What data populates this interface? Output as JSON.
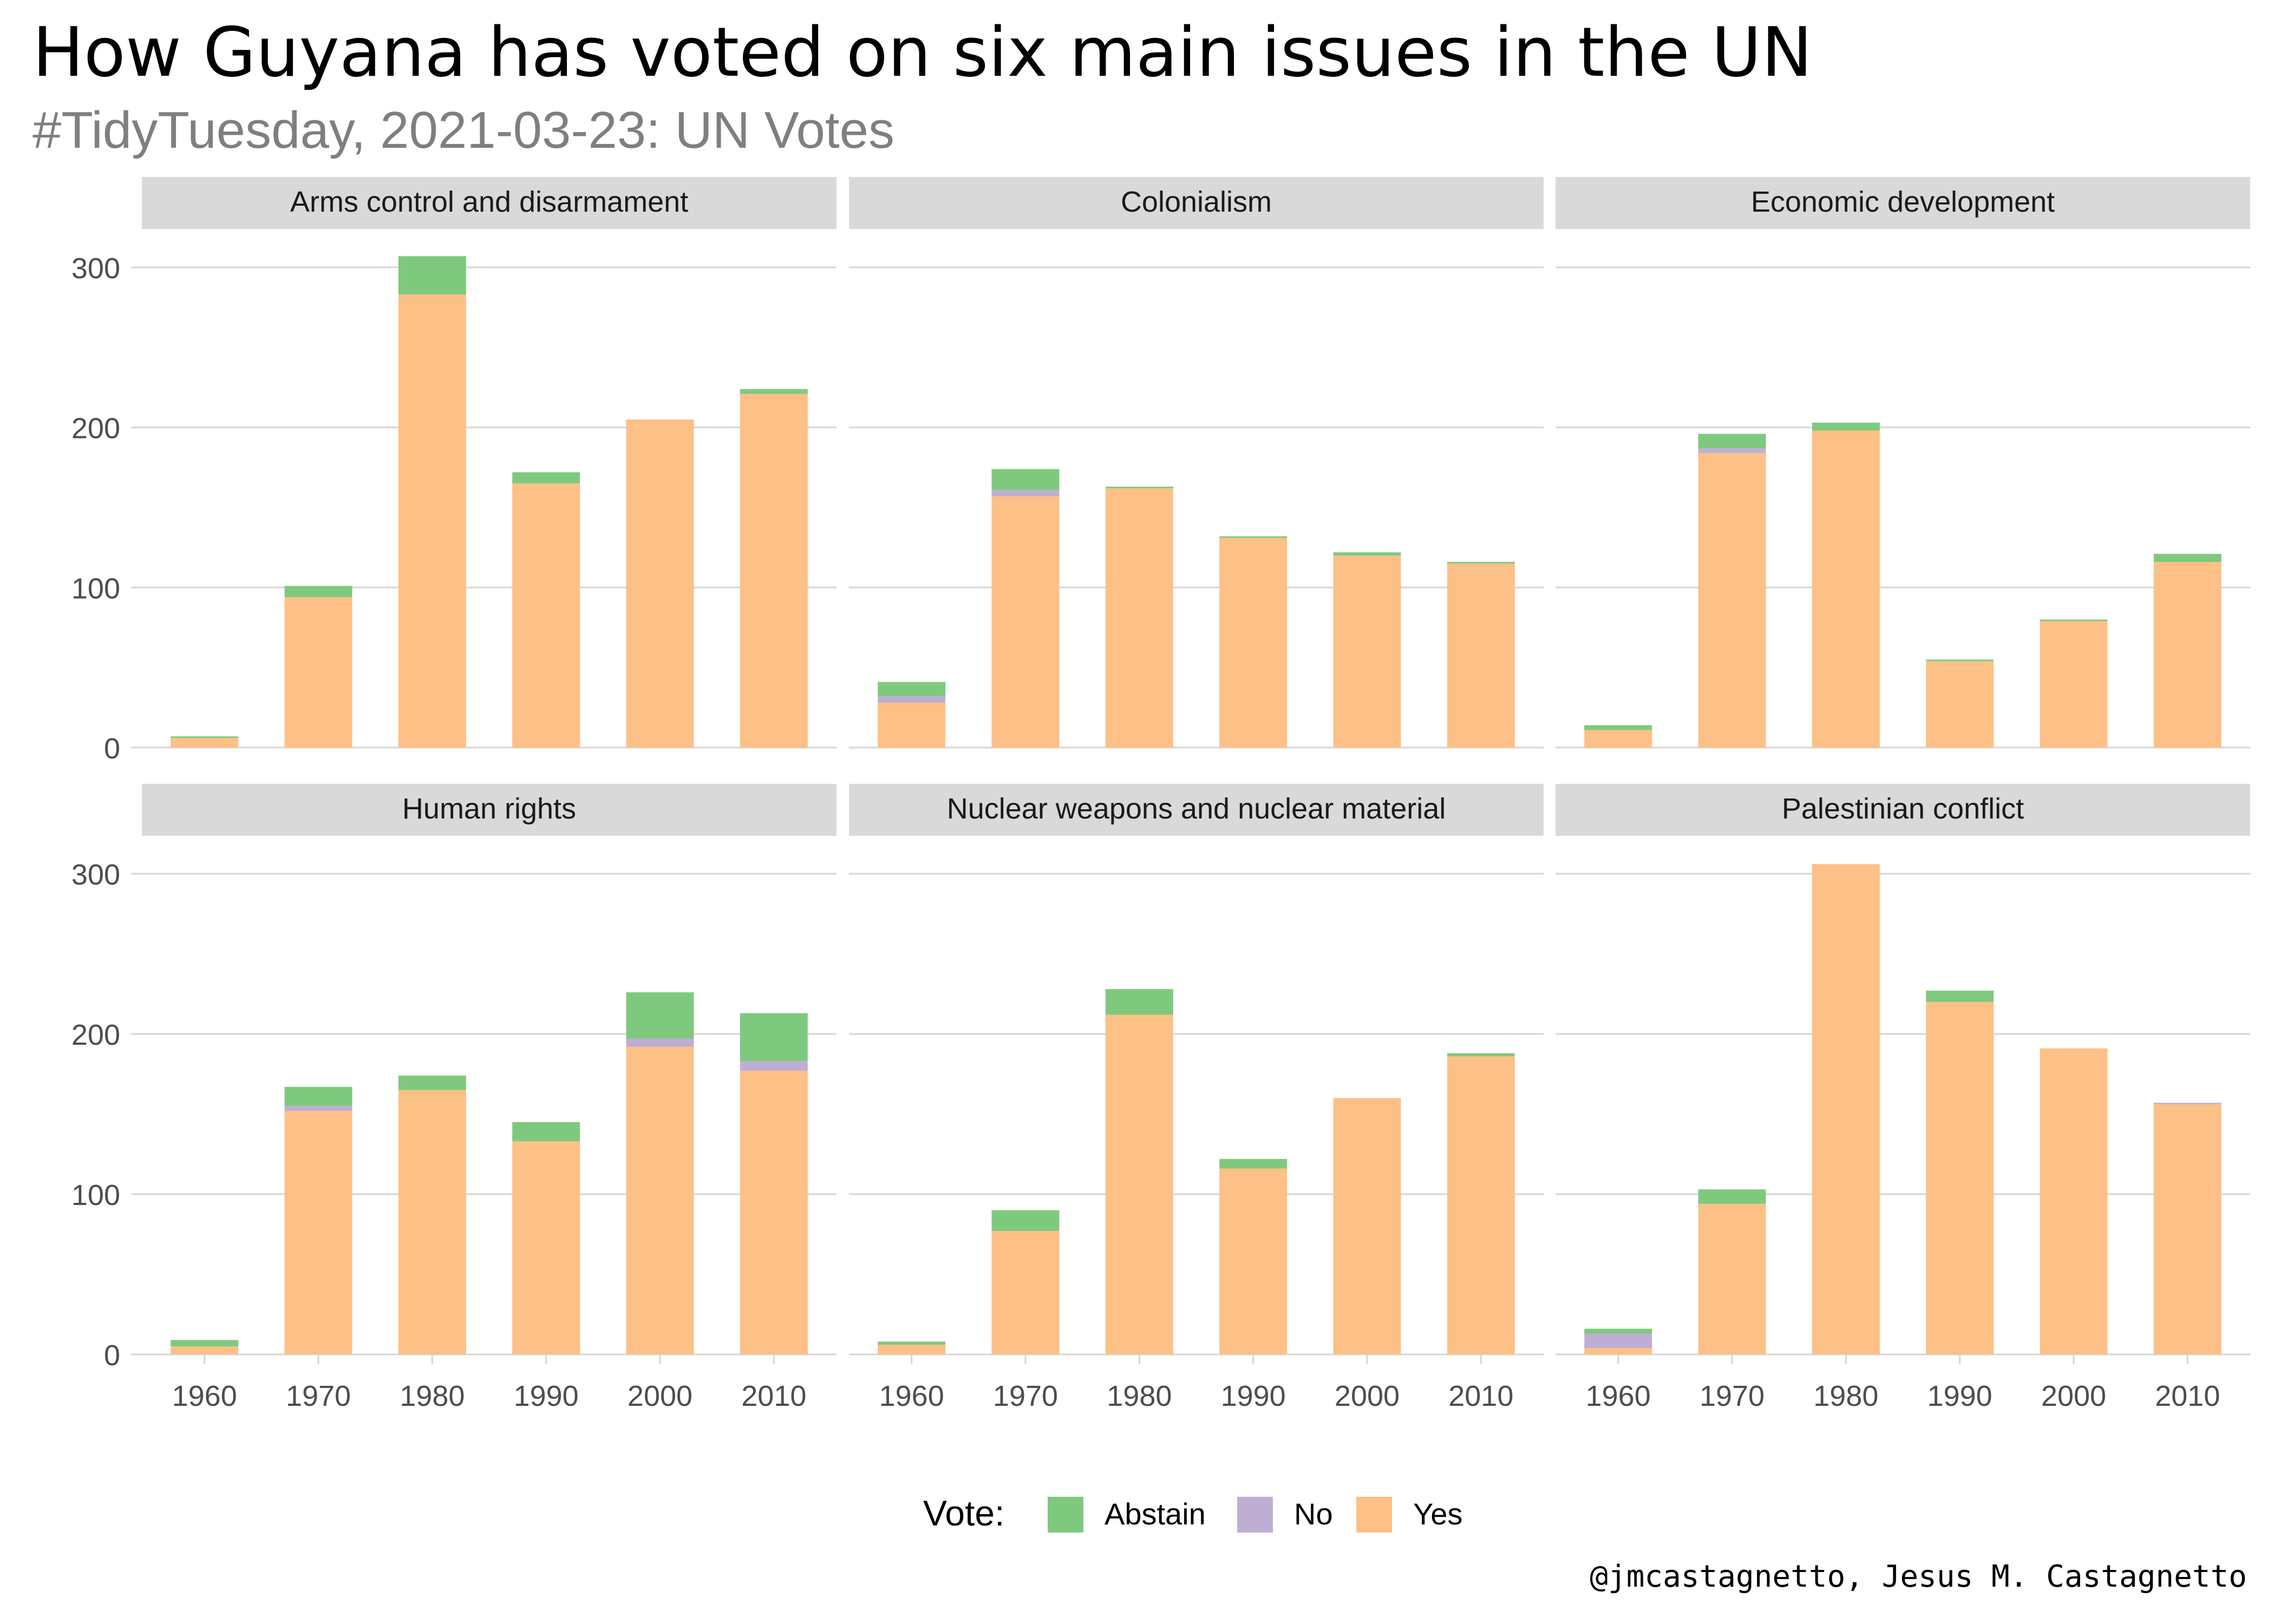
{
  "title": "How Guyana has voted on six main issues in the UN",
  "subtitle": "#TidyTuesday, 2021-03-23: UN Votes",
  "caption": "@jmcastagnetto, Jesus M. Castagnetto",
  "legend": {
    "title": "Vote:",
    "items": [
      {
        "label": "Abstain",
        "color": "#7fc97f"
      },
      {
        "label": "No",
        "color": "#beaed4"
      },
      {
        "label": "Yes",
        "color": "#fdc086"
      }
    ]
  },
  "chart_data": {
    "type": "bar",
    "stacked": true,
    "categories": [
      "1960",
      "1970",
      "1980",
      "1990",
      "2000",
      "2010"
    ],
    "ylim": [
      0,
      325
    ],
    "yticks": [
      0,
      100,
      200,
      300
    ],
    "grid": true,
    "legend_position": "bottom",
    "series_order": [
      "Yes",
      "No",
      "Abstain"
    ],
    "colors": {
      "Abstain": "#7fc97f",
      "No": "#beaed4",
      "Yes": "#fdc086"
    },
    "facets": [
      {
        "name": "Arms control and disarmament",
        "series": [
          {
            "name": "Yes",
            "values": [
              6,
              94,
              283,
              165,
              205,
              221
            ]
          },
          {
            "name": "No",
            "values": [
              0,
              0,
              0,
              0,
              0,
              0
            ]
          },
          {
            "name": "Abstain",
            "values": [
              1,
              7,
              24,
              7,
              0,
              3
            ]
          }
        ]
      },
      {
        "name": "Colonialism",
        "series": [
          {
            "name": "Yes",
            "values": [
              28,
              157,
              162,
              131,
              120,
              115
            ]
          },
          {
            "name": "No",
            "values": [
              4,
              4,
              0,
              0,
              0,
              0
            ]
          },
          {
            "name": "Abstain",
            "values": [
              9,
              13,
              1,
              1,
              2,
              1
            ]
          }
        ]
      },
      {
        "name": "Economic development",
        "series": [
          {
            "name": "Yes",
            "values": [
              11,
              184,
              198,
              54,
              79,
              116
            ]
          },
          {
            "name": "No",
            "values": [
              0,
              3,
              0,
              0,
              0,
              0
            ]
          },
          {
            "name": "Abstain",
            "values": [
              3,
              9,
              5,
              1,
              1,
              5
            ]
          }
        ]
      },
      {
        "name": "Human rights",
        "series": [
          {
            "name": "Yes",
            "values": [
              5,
              152,
              165,
              133,
              192,
              177
            ]
          },
          {
            "name": "No",
            "values": [
              0,
              3,
              0,
              0,
              5,
              6
            ]
          },
          {
            "name": "Abstain",
            "values": [
              4,
              12,
              9,
              12,
              29,
              30
            ]
          }
        ]
      },
      {
        "name": "Nuclear weapons and nuclear material",
        "series": [
          {
            "name": "Yes",
            "values": [
              6,
              77,
              212,
              116,
              160,
              186
            ]
          },
          {
            "name": "No",
            "values": [
              0,
              0,
              0,
              0,
              0,
              0
            ]
          },
          {
            "name": "Abstain",
            "values": [
              2,
              13,
              16,
              6,
              0,
              2
            ]
          }
        ]
      },
      {
        "name": "Palestinian conflict",
        "series": [
          {
            "name": "Yes",
            "values": [
              4,
              94,
              306,
              220,
              191,
              156
            ]
          },
          {
            "name": "No",
            "values": [
              9,
              0,
              0,
              0,
              0,
              1
            ]
          },
          {
            "name": "Abstain",
            "values": [
              3,
              9,
              0,
              7,
              0,
              0
            ]
          }
        ]
      }
    ]
  }
}
